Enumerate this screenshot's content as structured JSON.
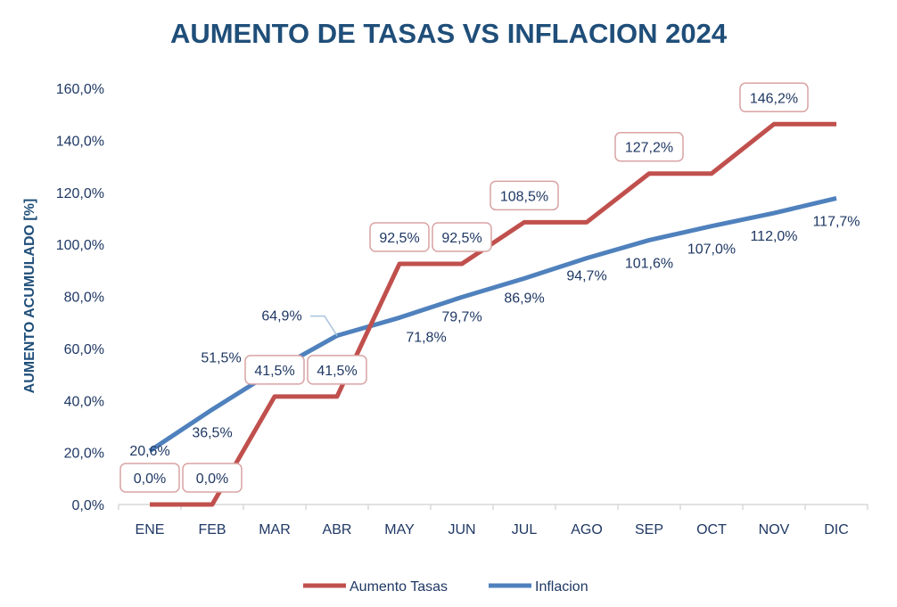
{
  "chart_data": {
    "type": "line",
    "title": "AUMENTO DE TASAS VS INFLACION 2024",
    "ylabel": "AUMENTO ACUMULADO [%]",
    "xlabel": "",
    "categories": [
      "ENE",
      "FEB",
      "MAR",
      "ABR",
      "MAY",
      "JUN",
      "JUL",
      "AGO",
      "SEP",
      "OCT",
      "NOV",
      "DIC"
    ],
    "ylim": [
      0,
      160
    ],
    "yticks": [
      "0,0%",
      "20,0%",
      "40,0%",
      "60,0%",
      "80,0%",
      "100,0%",
      "120,0%",
      "140,0%",
      "160,0%"
    ],
    "grid": false,
    "legend_position": "bottom",
    "series": [
      {
        "name": "Aumento Tasas",
        "style": "step",
        "color": "#c0504d",
        "values": [
          0,
          0,
          41.5,
          41.5,
          92.5,
          92.5,
          108.5,
          108.5,
          127.2,
          127.2,
          146.2,
          146.2
        ],
        "labels": [
          "0,0%",
          "0,0%",
          "41,5%",
          "41,5%",
          "92,5%",
          "92,5%",
          "108,5%",
          "",
          "127,2%",
          "",
          "146,2%",
          ""
        ]
      },
      {
        "name": "Inflacion",
        "style": "line",
        "color": "#4f81bd",
        "values": [
          20.6,
          36.5,
          51.5,
          64.9,
          71.8,
          79.7,
          86.9,
          94.7,
          101.6,
          107.0,
          112.0,
          117.7
        ],
        "labels": [
          "20,6%",
          "36,5%",
          "51,5%",
          "64,9%",
          "71,8%",
          "79,7%",
          "86,9%",
          "94,7%",
          "101,6%",
          "107,0%",
          "112,0%",
          "117,7%"
        ]
      }
    ]
  },
  "colors": {
    "title": "#1f4e79",
    "axis_text": "#1f3864",
    "label_box_border": "#d9a3a3",
    "leader_line": "#a9c4de",
    "axis_line": "#d9d9d9"
  }
}
